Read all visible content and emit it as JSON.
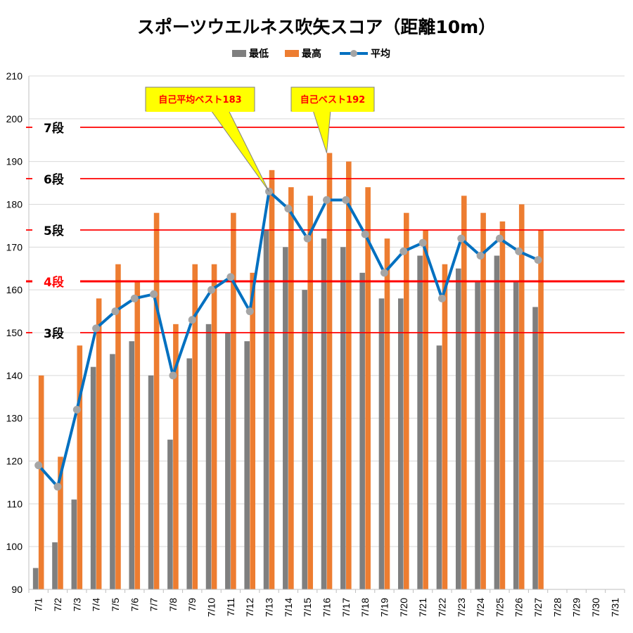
{
  "chart_data": {
    "type": "bar",
    "title": "スポーツウエルネス吹矢スコア（距離10m）",
    "ylim": [
      90,
      210
    ],
    "yticks": [
      90,
      100,
      110,
      120,
      130,
      140,
      150,
      160,
      170,
      180,
      190,
      200,
      210
    ],
    "categories": [
      "7/1",
      "7/2",
      "7/3",
      "7/4",
      "7/5",
      "7/6",
      "7/7",
      "7/8",
      "7/9",
      "7/10",
      "7/11",
      "7/12",
      "7/13",
      "7/14",
      "7/15",
      "7/16",
      "7/17",
      "7/18",
      "7/19",
      "7/20",
      "7/21",
      "7/22",
      "7/23",
      "7/24",
      "7/25",
      "7/26",
      "7/27",
      "7/28",
      "7/29",
      "7/30",
      "7/31"
    ],
    "legend": {
      "placement": "top-center"
    },
    "grid": true,
    "series": [
      {
        "name": "最低",
        "kind": "bar",
        "color": "#7f7f7f",
        "values": [
          95,
          101,
          111,
          142,
          145,
          148,
          140,
          125,
          144,
          152,
          150,
          148,
          174,
          170,
          160,
          172,
          170,
          164,
          158,
          158,
          168,
          147,
          165,
          162,
          168,
          162,
          156,
          null,
          null,
          null,
          null
        ]
      },
      {
        "name": "最高",
        "kind": "bar",
        "color": "#ed7d31",
        "values": [
          140,
          121,
          147,
          158,
          166,
          162,
          178,
          152,
          166,
          166,
          178,
          164,
          188,
          184,
          182,
          192,
          190,
          184,
          172,
          178,
          174,
          166,
          182,
          178,
          176,
          180,
          174,
          null,
          null,
          null,
          null
        ]
      },
      {
        "name": "平均",
        "kind": "line",
        "color": "#0070c0",
        "marker_color": "#a5a5a5",
        "values": [
          119,
          114,
          132,
          151,
          155,
          158,
          159,
          140,
          153,
          160,
          163,
          155,
          183,
          179,
          172,
          181,
          181,
          173,
          164,
          169,
          171,
          158,
          172,
          168,
          172,
          169,
          167,
          null,
          null,
          null,
          null
        ]
      }
    ],
    "reference_lines": [
      {
        "label": "7段",
        "value": 198,
        "emphasis": false
      },
      {
        "label": "6段",
        "value": 186,
        "emphasis": false
      },
      {
        "label": "5段",
        "value": 174,
        "emphasis": false
      },
      {
        "label": "4段",
        "value": 162,
        "emphasis": true
      },
      {
        "label": "3段",
        "value": 150,
        "emphasis": false
      }
    ],
    "annotations": [
      {
        "text": "自己平均ベスト183",
        "category": "7/13",
        "value": 183
      },
      {
        "text": "自己ベスト192",
        "category": "7/16",
        "value": 192
      }
    ]
  }
}
